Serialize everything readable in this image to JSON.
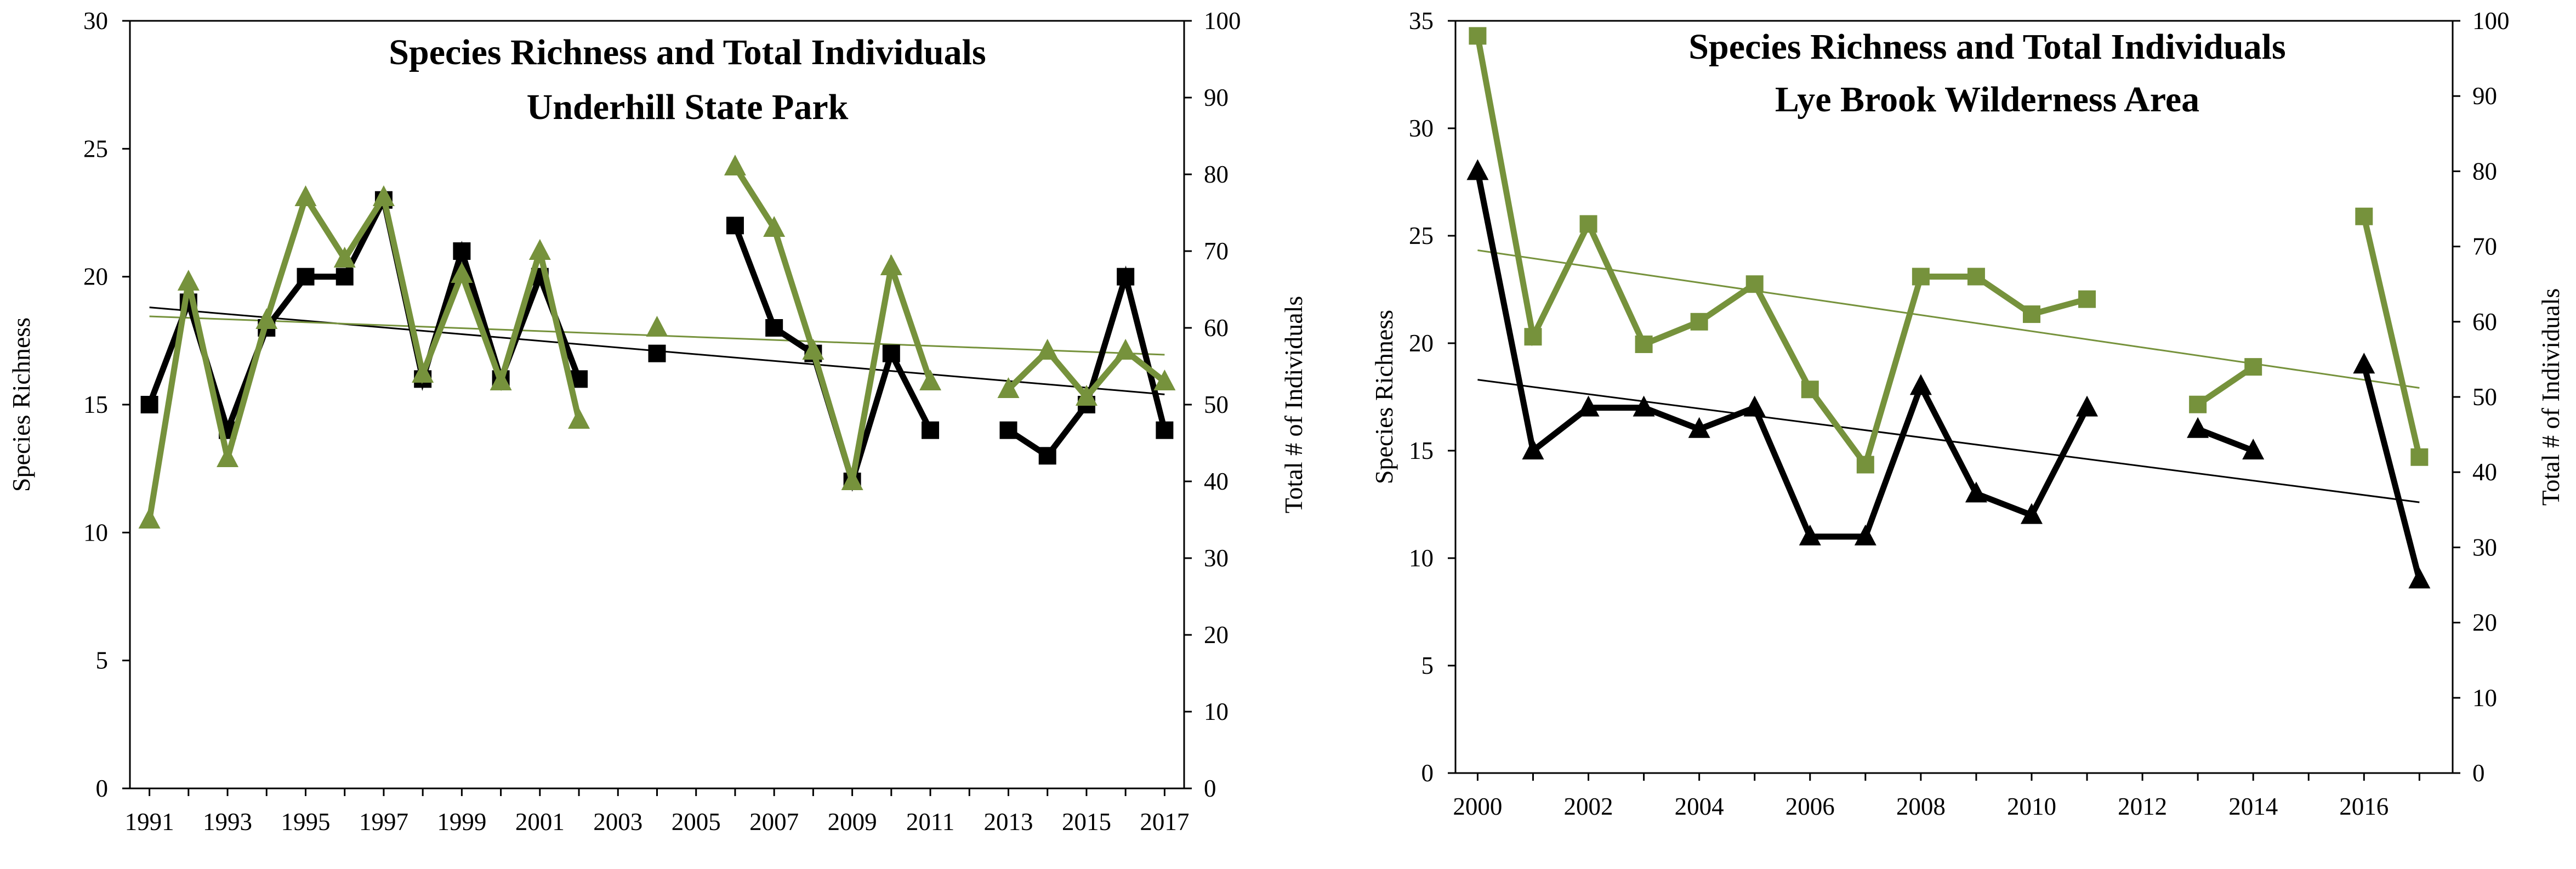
{
  "chart_data": [
    {
      "type": "line",
      "title": [
        "Species Richness and Total Individuals",
        "Underhill State Park"
      ],
      "ylabel": "Species Richness",
      "y2label": "Total # of Individuals",
      "xlim": [
        1990.5,
        2017.5
      ],
      "ylim": [
        0,
        30
      ],
      "y2lim": [
        0,
        100
      ],
      "xticks": [
        1991,
        1993,
        1995,
        1997,
        1999,
        2001,
        2003,
        2005,
        2007,
        2009,
        2011,
        2013,
        2015,
        2017
      ],
      "yticks": [
        0,
        5,
        10,
        15,
        20,
        25,
        30
      ],
      "y2ticks": [
        0,
        10,
        20,
        30,
        40,
        50,
        60,
        70,
        80,
        90,
        100
      ],
      "series": [
        {
          "name": "Species Richness",
          "axis": "left",
          "color": "#000000",
          "marker": "square",
          "x": [
            1991,
            1992,
            1993,
            1994,
            1995,
            1996,
            1997,
            1998,
            1999,
            2000,
            2001,
            2002,
            2004,
            2006,
            2007,
            2008,
            2009,
            2010,
            2011,
            2013,
            2014,
            2015,
            2016,
            2017
          ],
          "values": [
            15,
            19,
            14,
            18,
            20,
            20,
            23,
            16,
            21,
            16,
            20,
            16,
            17,
            22,
            18,
            17,
            12,
            17,
            14,
            14,
            13,
            15,
            20,
            14
          ],
          "segments": [
            [
              1991,
              2002
            ],
            [
              2004,
              2004
            ],
            [
              2006,
              2011
            ],
            [
              2013,
              2017
            ]
          ]
        },
        {
          "name": "Total # of Individuals",
          "axis": "right",
          "color": "#76923c",
          "marker": "triangle",
          "x": [
            1991,
            1992,
            1993,
            1994,
            1995,
            1996,
            1997,
            1998,
            1999,
            2000,
            2001,
            2002,
            2004,
            2006,
            2007,
            2008,
            2009,
            2010,
            2011,
            2013,
            2014,
            2015,
            2016,
            2017
          ],
          "values": [
            35,
            66,
            43,
            61,
            77,
            69,
            77,
            54,
            67,
            53,
            70,
            48,
            60,
            81,
            73,
            57,
            40,
            68,
            53,
            52,
            57,
            51,
            57,
            53
          ],
          "segments": [
            [
              1991,
              2002
            ],
            [
              2004,
              2004
            ],
            [
              2006,
              2011
            ],
            [
              2013,
              2017
            ]
          ]
        }
      ],
      "trendlines": [
        {
          "series": "Species Richness",
          "axis": "left",
          "color": "#000000",
          "from": [
            1991,
            18.8
          ],
          "to": [
            2017,
            15.4
          ]
        },
        {
          "series": "Total # of Individuals",
          "axis": "right",
          "color": "#76923c",
          "from": [
            1991,
            61.5
          ],
          "to": [
            2017,
            56.5
          ]
        }
      ]
    },
    {
      "type": "line",
      "title": [
        "Species Richness and Total Individuals",
        "Lye Brook Wilderness Area"
      ],
      "ylabel": "Species Richness",
      "y2label": "Total # of Individuals",
      "xlim": [
        1999.6,
        2017.6
      ],
      "ylim": [
        0,
        35
      ],
      "y2lim": [
        0,
        100
      ],
      "xticks": [
        2000,
        2002,
        2004,
        2006,
        2008,
        2010,
        2012,
        2014,
        2016
      ],
      "yticks": [
        0,
        5,
        10,
        15,
        20,
        25,
        30,
        35
      ],
      "y2ticks": [
        0,
        10,
        20,
        30,
        40,
        50,
        60,
        70,
        80,
        90,
        100
      ],
      "series": [
        {
          "name": "Species Richness",
          "axis": "left",
          "color": "#000000",
          "marker": "triangle",
          "x": [
            2000,
            2001,
            2002,
            2003,
            2004,
            2005,
            2006,
            2007,
            2008,
            2009,
            2010,
            2011,
            2013,
            2014,
            2016,
            2017
          ],
          "values": [
            28,
            15,
            17,
            17,
            16,
            17,
            11,
            11,
            18,
            13,
            12,
            17,
            16,
            15,
            19,
            9
          ],
          "segments": [
            [
              2000,
              2011
            ],
            [
              2013,
              2014
            ],
            [
              2016,
              2017
            ]
          ]
        },
        {
          "name": "Total # of Individuals",
          "axis": "right",
          "color": "#76923c",
          "marker": "square",
          "x": [
            2000,
            2001,
            2002,
            2003,
            2004,
            2005,
            2006,
            2007,
            2008,
            2009,
            2010,
            2011,
            2013,
            2014,
            2016,
            2017
          ],
          "values": [
            98,
            58,
            73,
            57,
            60,
            65,
            51,
            41,
            66,
            66,
            61,
            63,
            49,
            54,
            74,
            42
          ],
          "segments": [
            [
              2000,
              2011
            ],
            [
              2013,
              2014
            ],
            [
              2016,
              2017
            ]
          ]
        }
      ],
      "trendlines": [
        {
          "series": "Species Richness",
          "axis": "left",
          "color": "#000000",
          "from": [
            2000,
            18.3
          ],
          "to": [
            2017,
            12.6
          ]
        },
        {
          "series": "Total # of Individuals",
          "axis": "right",
          "color": "#76923c",
          "from": [
            2000,
            69.5
          ],
          "to": [
            2017,
            51.2
          ]
        }
      ]
    }
  ]
}
